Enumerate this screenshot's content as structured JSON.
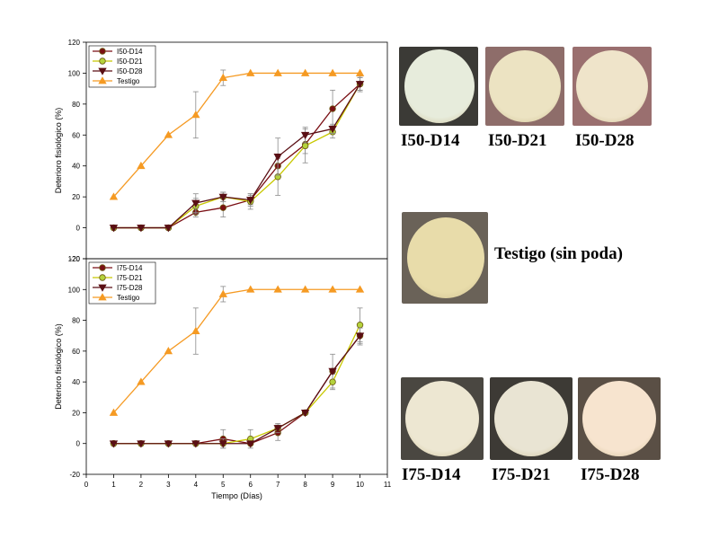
{
  "chart_data": [
    {
      "type": "line",
      "ylabel": "Deterioro fisiológico (%)",
      "xlabel": "",
      "xlim": [
        0,
        11
      ],
      "ylim": [
        -20,
        120
      ],
      "yticks": [
        -20,
        0,
        20,
        40,
        60,
        80,
        100,
        120
      ],
      "xticks": [],
      "legend": "top-left",
      "series": [
        {
          "name": "I50-D14",
          "color": "#7a0f14",
          "marker": "circle",
          "fill": "#7a0f14",
          "x": [
            1,
            2,
            3,
            4,
            5,
            6,
            7,
            8,
            9,
            10
          ],
          "y": [
            0,
            0,
            0,
            10,
            13,
            18,
            40,
            54,
            77,
            93
          ],
          "err": [
            0,
            0,
            0,
            3,
            6,
            3,
            6,
            6,
            12,
            4
          ]
        },
        {
          "name": "I50-D21",
          "color": "#c8c800",
          "marker": "circle",
          "fill": "#b4d23c",
          "x": [
            1,
            2,
            3,
            4,
            5,
            6,
            7,
            8,
            9,
            10
          ],
          "y": [
            0,
            0,
            0,
            14,
            20,
            17,
            33,
            53,
            62,
            93
          ],
          "err": [
            0,
            0,
            0,
            5,
            3,
            5,
            12,
            11,
            4,
            5
          ]
        },
        {
          "name": "I50-D28",
          "color": "#5a0f14",
          "marker": "triangle-down",
          "fill": "#5a0f14",
          "x": [
            1,
            2,
            3,
            4,
            5,
            6,
            7,
            8,
            9,
            10
          ],
          "y": [
            0,
            0,
            0,
            16,
            20,
            18,
            46,
            60,
            64,
            93
          ],
          "err": [
            0,
            0,
            0,
            6,
            3,
            4,
            12,
            5,
            3,
            4
          ]
        },
        {
          "name": "Testigo",
          "color": "#f59a23",
          "marker": "triangle-up",
          "fill": "#f59a23",
          "x": [
            1,
            2,
            3,
            4,
            5,
            6,
            7,
            8,
            9,
            10
          ],
          "y": [
            20,
            40,
            60,
            73,
            97,
            100,
            100,
            100,
            100,
            100
          ],
          "err": [
            0,
            0,
            0,
            15,
            5,
            0,
            0,
            0,
            0,
            0
          ]
        }
      ]
    },
    {
      "type": "line",
      "ylabel": "Deterioro fisiológico (%)",
      "xlabel": "Tiempo (Días)",
      "xlim": [
        0,
        11
      ],
      "ylim": [
        -20,
        120
      ],
      "yticks": [
        -20,
        0,
        20,
        40,
        60,
        80,
        100,
        120
      ],
      "xticks": [
        0,
        1,
        2,
        3,
        4,
        5,
        6,
        7,
        8,
        9,
        10,
        11
      ],
      "legend": "top-left",
      "series": [
        {
          "name": "I75-D14",
          "color": "#7a0f14",
          "marker": "circle",
          "fill": "#7a0f14",
          "x": [
            1,
            2,
            3,
            4,
            5,
            6,
            7,
            8,
            9,
            10
          ],
          "y": [
            0,
            0,
            0,
            0,
            3,
            0,
            7,
            20,
            47,
            70
          ],
          "err": [
            0,
            0,
            0,
            0,
            6,
            0,
            5,
            0,
            11,
            6
          ]
        },
        {
          "name": "I75-D21",
          "color": "#c8c800",
          "marker": "circle",
          "fill": "#b4d23c",
          "x": [
            1,
            2,
            3,
            4,
            5,
            6,
            7,
            8,
            9,
            10
          ],
          "y": [
            0,
            0,
            0,
            0,
            0,
            3,
            10,
            20,
            40,
            77
          ],
          "err": [
            0,
            0,
            0,
            0,
            3,
            6,
            3,
            0,
            5,
            11
          ]
        },
        {
          "name": "I75-D28",
          "color": "#5a0f14",
          "marker": "triangle-down",
          "fill": "#5a0f14",
          "x": [
            1,
            2,
            3,
            4,
            5,
            6,
            7,
            8,
            9,
            10
          ],
          "y": [
            0,
            0,
            0,
            0,
            0,
            0,
            10,
            20,
            47,
            70
          ],
          "err": [
            0,
            0,
            0,
            0,
            0,
            0,
            0,
            0,
            0,
            5
          ]
        },
        {
          "name": "Testigo",
          "color": "#f59a23",
          "marker": "triangle-up",
          "fill": "#f59a23",
          "x": [
            1,
            2,
            3,
            4,
            5,
            6,
            7,
            8,
            9,
            10
          ],
          "y": [
            20,
            40,
            60,
            73,
            97,
            100,
            100,
            100,
            100,
            100
          ],
          "err": [
            0,
            0,
            0,
            15,
            5,
            0,
            0,
            0,
            0,
            0
          ]
        }
      ]
    }
  ],
  "photos": {
    "top": [
      {
        "caption": "I50-D14",
        "bg": "#3b3a36",
        "disc": "#e7ecdc"
      },
      {
        "caption": "I50-D21",
        "bg": "#8e6d6a",
        "disc": "#ece3c2"
      },
      {
        "caption": "I50-D28",
        "bg": "#9a6f6f",
        "disc": "#efe4ca"
      }
    ],
    "middle": {
      "caption": "Testigo (sin poda)",
      "bg": "#6a6258",
      "disc": "#e8dcaa"
    },
    "bottom": [
      {
        "caption": "I75-D14",
        "bg": "#4a4741",
        "disc": "#ede7d2"
      },
      {
        "caption": "I75-D21",
        "bg": "#3d3a35",
        "disc": "#e9e4d3"
      },
      {
        "caption": "I75-D28",
        "bg": "#5a4f45",
        "disc": "#f7e4cf"
      }
    ]
  }
}
